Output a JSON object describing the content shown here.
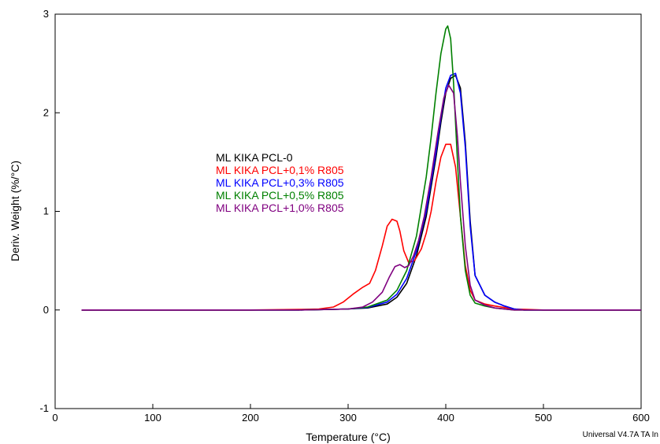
{
  "chart_data": {
    "type": "line",
    "xlabel": "Temperature (°C)",
    "ylabel": "Deriv. Weight (%/°C)",
    "xlim": [
      0,
      600
    ],
    "ylim": [
      -1,
      3
    ],
    "x_ticks": [
      0,
      100,
      200,
      300,
      400,
      500,
      600
    ],
    "y_ticks": [
      -1,
      0,
      1,
      2,
      3
    ],
    "grid": false,
    "legend_position": "center-left",
    "footer": "Universal V4.7A TA In",
    "series": [
      {
        "name": "ML KIKA PCL-0",
        "color": "#000000",
        "x": [
          27,
          100,
          200,
          250,
          280,
          300,
          320,
          340,
          350,
          360,
          370,
          380,
          390,
          395,
          400,
          405,
          410,
          415,
          420,
          425,
          430,
          440,
          450,
          460,
          470,
          480,
          500,
          600
        ],
        "y": [
          0,
          0,
          0,
          0,
          0.005,
          0.01,
          0.02,
          0.06,
          0.13,
          0.27,
          0.55,
          0.95,
          1.55,
          1.9,
          2.2,
          2.35,
          2.38,
          2.25,
          1.7,
          0.9,
          0.35,
          0.15,
          0.08,
          0.04,
          0.01,
          0,
          0,
          0
        ]
      },
      {
        "name": "ML KIKA PCL+0,1% R805",
        "color": "#ff0000",
        "x": [
          27,
          100,
          200,
          250,
          270,
          285,
          295,
          305,
          315,
          322,
          328,
          335,
          340,
          345,
          350,
          353,
          357,
          362,
          368,
          375,
          380,
          385,
          390,
          395,
          400,
          405,
          410,
          415,
          420,
          425,
          430,
          440,
          450,
          470,
          500,
          600
        ],
        "y": [
          0,
          0,
          0,
          0.005,
          0.01,
          0.03,
          0.08,
          0.16,
          0.23,
          0.27,
          0.4,
          0.65,
          0.85,
          0.92,
          0.9,
          0.8,
          0.6,
          0.48,
          0.5,
          0.62,
          0.78,
          1.0,
          1.3,
          1.55,
          1.68,
          1.68,
          1.45,
          0.95,
          0.45,
          0.2,
          0.1,
          0.06,
          0.04,
          0.01,
          0,
          0
        ]
      },
      {
        "name": "ML KIKA PCL+0,3% R805",
        "color": "#0000ff",
        "x": [
          27,
          100,
          200,
          250,
          280,
          300,
          320,
          340,
          350,
          360,
          370,
          380,
          390,
          395,
          400,
          405,
          410,
          415,
          420,
          425,
          430,
          440,
          450,
          460,
          470,
          480,
          500,
          600
        ],
        "y": [
          0,
          0,
          0,
          0,
          0.005,
          0.01,
          0.025,
          0.08,
          0.16,
          0.32,
          0.6,
          1.0,
          1.6,
          1.95,
          2.25,
          2.38,
          2.4,
          2.2,
          1.65,
          0.85,
          0.35,
          0.15,
          0.08,
          0.04,
          0.01,
          0,
          0,
          0
        ]
      },
      {
        "name": "ML KIKA PCL+0,5% R805",
        "color": "#008000",
        "x": [
          27,
          100,
          200,
          250,
          280,
          300,
          320,
          340,
          350,
          360,
          370,
          380,
          385,
          390,
          395,
          400,
          402,
          405,
          408,
          412,
          415,
          420,
          425,
          430,
          440,
          450,
          470,
          500,
          600
        ],
        "y": [
          0,
          0,
          0,
          0,
          0.005,
          0.01,
          0.03,
          0.1,
          0.2,
          0.4,
          0.75,
          1.35,
          1.75,
          2.2,
          2.6,
          2.85,
          2.88,
          2.75,
          2.3,
          1.5,
          0.95,
          0.4,
          0.15,
          0.07,
          0.04,
          0.02,
          0,
          0,
          0
        ]
      },
      {
        "name": "ML KIKA PCL+1,0% R805",
        "color": "#800080",
        "x": [
          27,
          100,
          200,
          250,
          280,
          300,
          315,
          325,
          335,
          342,
          348,
          353,
          358,
          362,
          367,
          372,
          378,
          385,
          392,
          398,
          403,
          408,
          412,
          415,
          420,
          425,
          430,
          440,
          450,
          470,
          500,
          600
        ],
        "y": [
          0,
          0,
          0,
          0,
          0.005,
          0.01,
          0.03,
          0.08,
          0.18,
          0.33,
          0.44,
          0.46,
          0.43,
          0.45,
          0.55,
          0.7,
          0.95,
          1.35,
          1.8,
          2.15,
          2.28,
          2.2,
          1.75,
          1.3,
          0.65,
          0.25,
          0.1,
          0.05,
          0.02,
          0,
          0,
          0
        ]
      }
    ]
  }
}
